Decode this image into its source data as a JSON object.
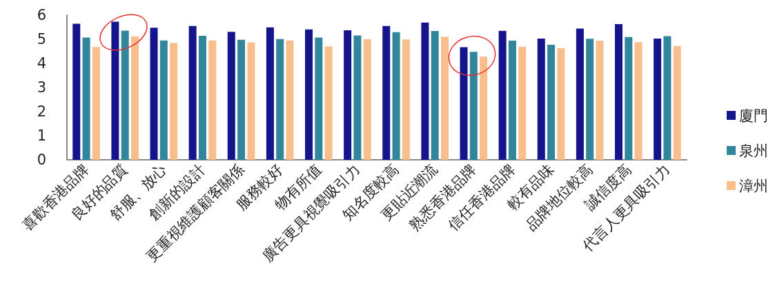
{
  "chart_data": {
    "type": "bar",
    "categories": [
      "喜歡香港品牌",
      "良好的品質",
      "舒服、放心",
      "創新的設計",
      "更重視維護顧客關係",
      "服務較好",
      "物有所值",
      "廣告更具視覺吸引力",
      "知名度較高",
      "更貼近潮流",
      "熟悉香港品牌",
      "信任香港品牌",
      "較有品味",
      "品牌地位較高",
      "誠信度高",
      "代言人更具吸引力"
    ],
    "series": [
      {
        "name": "廈門",
        "color": "#14148c",
        "values": [
          5.64,
          5.73,
          5.48,
          5.55,
          5.31,
          5.49,
          5.41,
          5.37,
          5.55,
          5.69,
          4.67,
          5.35,
          5.03,
          5.44,
          5.63,
          5.03
        ]
      },
      {
        "name": "泉州",
        "color": "#31869b",
        "values": [
          5.07,
          5.36,
          4.95,
          5.14,
          4.98,
          5.01,
          5.07,
          5.16,
          5.29,
          5.34,
          4.48,
          4.94,
          4.77,
          5.02,
          5.09,
          5.13
        ]
      },
      {
        "name": "漳州",
        "color": "#f8be8c",
        "values": [
          4.68,
          5.12,
          4.84,
          4.95,
          4.87,
          4.95,
          4.7,
          5.01,
          4.99,
          5.1,
          4.28,
          4.69,
          4.63,
          4.94,
          4.88,
          4.72
        ]
      }
    ],
    "ylim": [
      0,
      6
    ],
    "yticks": [
      0,
      1,
      2,
      3,
      4,
      5,
      6
    ],
    "grid": false,
    "legend": "right"
  }
}
